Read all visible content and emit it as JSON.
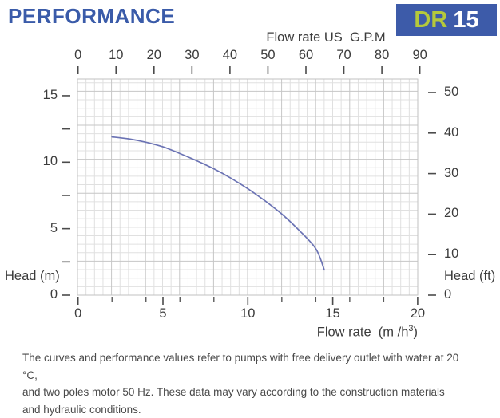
{
  "header": {
    "title": "PERFORMANCE"
  },
  "badge": {
    "series": "DR",
    "model": "15"
  },
  "chart_data": {
    "type": "line",
    "title": "",
    "top_axis": {
      "label": "Flow rate US  G.P.M",
      "ticks": [
        0,
        10,
        20,
        30,
        40,
        50,
        60,
        70,
        80,
        90
      ],
      "range": [
        0,
        90
      ]
    },
    "bottom_axis": {
      "label_prefix": "Flow rate  (m /h",
      "label_sup": "3",
      "label_suffix": ")",
      "major_ticks": [
        0,
        5,
        10,
        15,
        20
      ],
      "minor_ticks": [
        2,
        4,
        6,
        8,
        12,
        14,
        16,
        18
      ],
      "range": [
        0,
        20
      ]
    },
    "left_axis": {
      "label": "Head (m)",
      "labeled_ticks": [
        0,
        5,
        10,
        15
      ],
      "all_ticks": [
        0,
        2.5,
        5,
        7.5,
        10,
        12.5,
        15
      ],
      "range": [
        0,
        16.25
      ]
    },
    "right_axis": {
      "label": "Head (ft)",
      "ticks": [
        0,
        10,
        20,
        30,
        40,
        50
      ],
      "range": [
        0,
        53.2
      ]
    },
    "grid": {
      "minor_color": "#e0e0e0",
      "major_color": "#c6c6c6",
      "border_color": "#c2c2c2"
    },
    "series": [
      {
        "name": "DR 15 head curve",
        "color": "#6b73b4",
        "points": [
          [
            2.0,
            11.9
          ],
          [
            3.0,
            11.75
          ],
          [
            4.0,
            11.5
          ],
          [
            5.0,
            11.15
          ],
          [
            6.0,
            10.65
          ],
          [
            7.0,
            10.1
          ],
          [
            8.0,
            9.5
          ],
          [
            9.0,
            8.8
          ],
          [
            10.0,
            8.0
          ],
          [
            11.0,
            7.1
          ],
          [
            12.0,
            6.1
          ],
          [
            13.0,
            4.9
          ],
          [
            14.0,
            3.5
          ],
          [
            14.5,
            1.9
          ]
        ]
      }
    ]
  },
  "footer": {
    "lines": [
      "The curves and performance values refer to pumps with free delivery outlet with water at 20 °C,",
      "and two poles motor 50 Hz. These data may vary according to the construction materials",
      "and hydraulic conditions."
    ]
  },
  "colors": {
    "accent_blue": "#3a5ba9",
    "badge_lime": "#b5c93b",
    "curve": "#6b73b4"
  }
}
